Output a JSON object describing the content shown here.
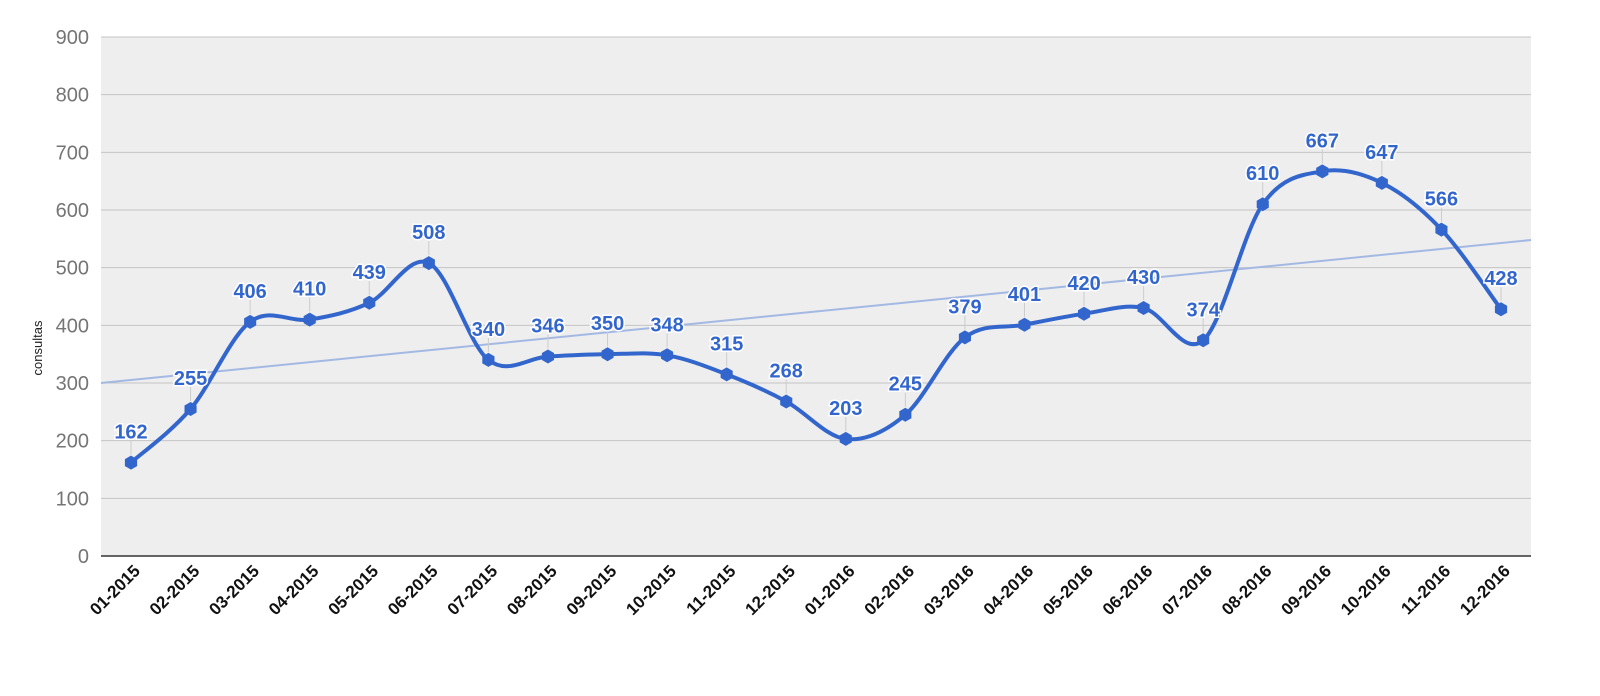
{
  "chart_data": {
    "type": "line",
    "title": "",
    "xlabel": "",
    "ylabel": "consultas",
    "ylim": [
      0,
      900
    ],
    "yticks": [
      0,
      100,
      200,
      300,
      400,
      500,
      600,
      700,
      800,
      900
    ],
    "grid": true,
    "categories": [
      "01-2015",
      "02-2015",
      "03-2015",
      "04-2015",
      "05-2015",
      "06-2015",
      "07-2015",
      "08-2015",
      "09-2015",
      "10-2015",
      "11-2015",
      "12-2015",
      "01-2016",
      "02-2016",
      "03-2016",
      "04-2016",
      "05-2016",
      "06-2016",
      "07-2016",
      "08-2016",
      "09-2016",
      "10-2016",
      "11-2016",
      "12-2016"
    ],
    "series": [
      {
        "name": "consultas",
        "values": [
          162,
          255,
          406,
          410,
          439,
          508,
          340,
          346,
          350,
          348,
          315,
          268,
          203,
          245,
          379,
          401,
          420,
          430,
          374,
          610,
          667,
          647,
          566,
          428
        ],
        "color": "#3366cc",
        "smooth": true,
        "data_labels": true
      }
    ],
    "trendline": {
      "type": "linear",
      "start": 300,
      "end": 548,
      "color": "#a3b9e3"
    }
  }
}
